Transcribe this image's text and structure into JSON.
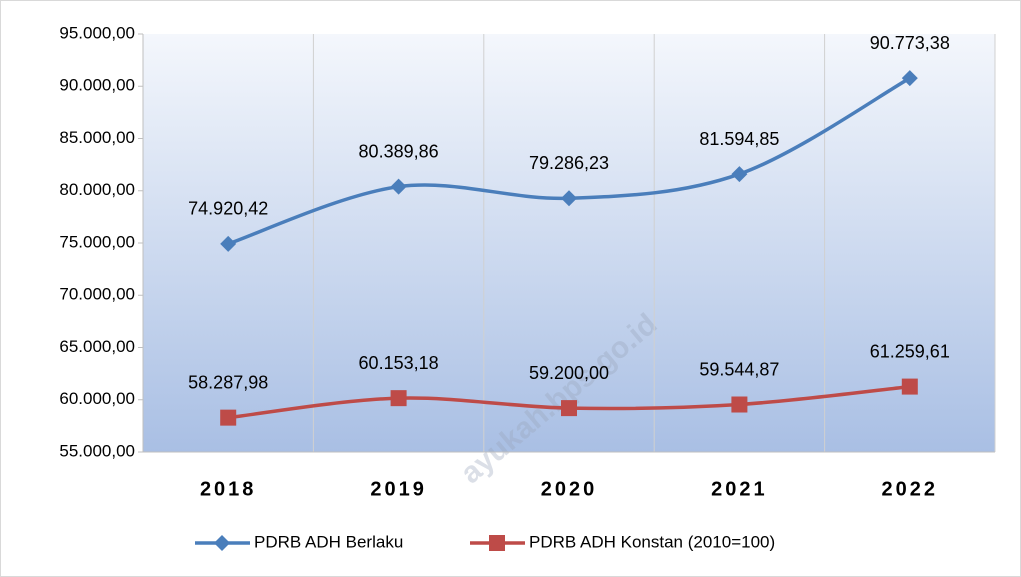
{
  "chart_data": {
    "type": "line",
    "categories": [
      "2018",
      "2019",
      "2020",
      "2021",
      "2022"
    ],
    "series": [
      {
        "name": "PDRB ADH Berlaku",
        "color": "#4a7ebb",
        "marker": "diamond",
        "values": [
          74920.42,
          80389.86,
          79286.23,
          81594.85,
          90773.38
        ],
        "value_labels": [
          "74.920,42",
          "80.389,86",
          "79.286,23",
          "81.594,85",
          "90.773,38"
        ]
      },
      {
        "name": "PDRB ADH Konstan (2010=100)",
        "color": "#be4b48",
        "marker": "square",
        "values": [
          58287.98,
          60153.18,
          59200.0,
          59544.87,
          61259.61
        ],
        "value_labels": [
          "58.287,98",
          "60.153,18",
          "59.200,00",
          "59.544,87",
          "61.259,61"
        ]
      }
    ],
    "ylim": [
      55000,
      95000
    ],
    "yticks": [
      {
        "value": 55000,
        "label": "55.000,00"
      },
      {
        "value": 60000,
        "label": "60.000,00"
      },
      {
        "value": 65000,
        "label": "65.000,00"
      },
      {
        "value": 70000,
        "label": "70.000,00"
      },
      {
        "value": 75000,
        "label": "75.000,00"
      },
      {
        "value": 80000,
        "label": "80.000,00"
      },
      {
        "value": 85000,
        "label": "85.000,00"
      },
      {
        "value": 90000,
        "label": "90.000,00"
      },
      {
        "value": 95000,
        "label": "95.000,00"
      }
    ],
    "smooth": true,
    "legend": "bottom",
    "watermark": "ayukah.bps.go.id"
  }
}
